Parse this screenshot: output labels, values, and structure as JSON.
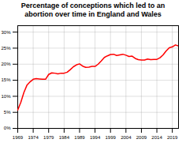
{
  "chart_data": {
    "type": "line",
    "title": "Percentage of conceptions which led to an\nabortion over time in England and Wales",
    "x": [
      1969,
      1970,
      1971,
      1972,
      1973,
      1974,
      1975,
      1976,
      1977,
      1978,
      1979,
      1980,
      1981,
      1982,
      1983,
      1984,
      1985,
      1986,
      1987,
      1988,
      1989,
      1990,
      1991,
      1992,
      1993,
      1994,
      1995,
      1996,
      1997,
      1998,
      1999,
      2000,
      2001,
      2002,
      2003,
      2004,
      2005,
      2006,
      2007,
      2008,
      2009,
      2010,
      2011,
      2012,
      2013,
      2014,
      2015,
      2016,
      2017,
      2018,
      2019,
      2020,
      2021
    ],
    "values": [
      5.7,
      8.1,
      11.2,
      13.5,
      14.5,
      15.3,
      15.5,
      15.4,
      15.3,
      15.3,
      16.8,
      17.3,
      17.2,
      17.0,
      17.2,
      17.2,
      17.5,
      18.3,
      19.2,
      19.8,
      20.1,
      19.4,
      19.0,
      19.1,
      19.3,
      19.3,
      20.0,
      21.0,
      22.1,
      22.6,
      23.0,
      23.1,
      22.7,
      22.9,
      23.1,
      22.8,
      22.4,
      22.5,
      21.8,
      21.4,
      21.3,
      21.3,
      21.6,
      21.4,
      21.5,
      21.5,
      22.0,
      22.9,
      24.1,
      25.1,
      25.4,
      26.0,
      25.7
    ],
    "color": "#ff0000",
    "xlim": [
      1969,
      2021
    ],
    "xticks": [
      1969,
      1974,
      1979,
      1984,
      1989,
      1994,
      1999,
      2004,
      2009,
      2014,
      2019
    ],
    "ylim": [
      0,
      32
    ],
    "yticks": [
      {
        "value": 0,
        "label": "0%"
      },
      {
        "value": 5,
        "label": "5%"
      },
      {
        "value": 10,
        "label": "10%"
      },
      {
        "value": 15,
        "label": "15%"
      },
      {
        "value": 20,
        "label": "20%"
      },
      {
        "value": 25,
        "label": "25%"
      },
      {
        "value": 30,
        "label": "30%"
      }
    ],
    "grid": true
  }
}
